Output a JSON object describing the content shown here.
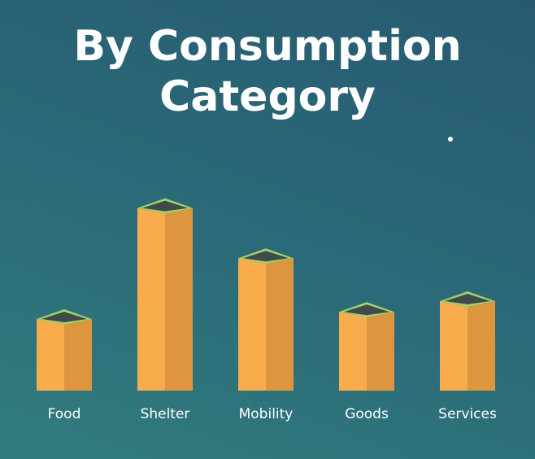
{
  "chart_data": {
    "type": "bar",
    "title": "By Consumption Category",
    "categories": [
      "Food",
      "Shelter",
      "Mobility",
      "Goods",
      "Services"
    ],
    "values": [
      20,
      51,
      37,
      22,
      25
    ],
    "color": "#f8ac4c"
  }
}
